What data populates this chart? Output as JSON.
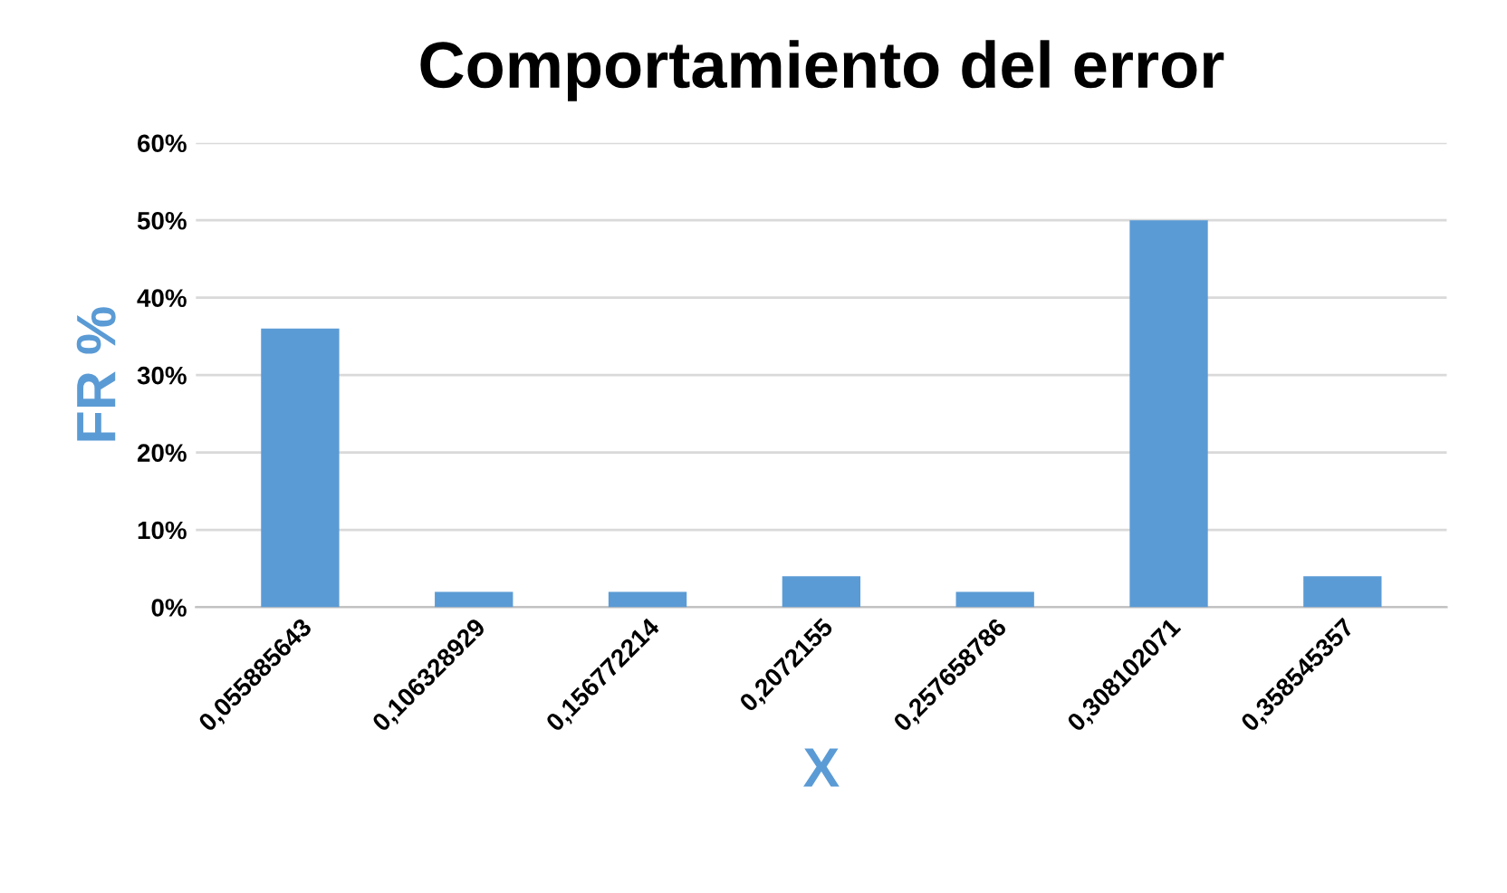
{
  "chart_data": {
    "type": "bar",
    "title": "Comportamiento del error",
    "xlabel": "X",
    "ylabel": "FR %",
    "categories": [
      "0,055885643",
      "0,106328929",
      "0,156772214",
      "0,2072155",
      "0,257658786",
      "0,308102071",
      "0,358545357"
    ],
    "values": [
      36,
      2,
      2,
      4,
      2,
      50,
      4
    ],
    "color": "#5b9bd5",
    "ylim": [
      0,
      60
    ],
    "yticks": [
      {
        "value": 0,
        "label": "0%"
      },
      {
        "value": 10,
        "label": "10%"
      },
      {
        "value": 20,
        "label": "20%"
      },
      {
        "value": 30,
        "label": "30%"
      },
      {
        "value": 40,
        "label": "40%"
      },
      {
        "value": 50,
        "label": "50%"
      },
      {
        "value": 60,
        "label": "60%"
      }
    ],
    "grid": "y"
  }
}
